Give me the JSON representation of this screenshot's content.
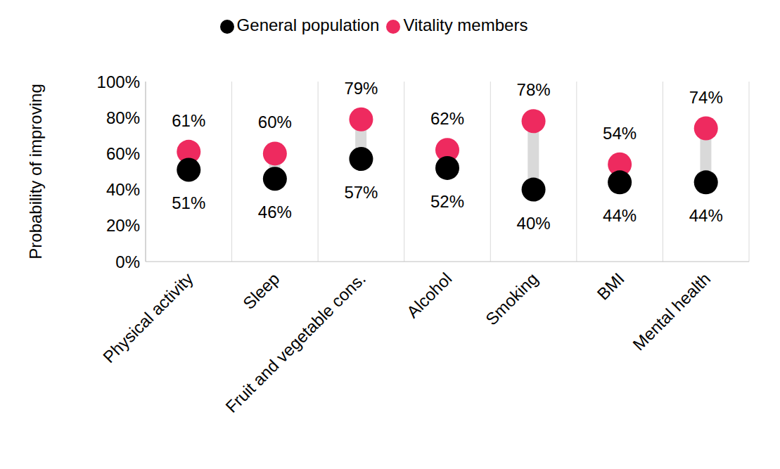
{
  "chart_data": {
    "type": "dumbbell",
    "y_label": "Probability of improving",
    "categories": [
      "Physical activity",
      "Sleep",
      "Fruit and vegetable cons.",
      "Alcohol",
      "Smoking",
      "BMI",
      "Mental health"
    ],
    "series": [
      {
        "name": "Vitality members",
        "color": "#ee2a5f",
        "marker": "circle",
        "values": [
          61,
          60,
          79,
          62,
          78,
          54,
          74
        ],
        "value_labels": [
          "61%",
          "60%",
          "79%",
          "62%",
          "78%",
          "54%",
          "74%"
        ]
      },
      {
        "name": "General population",
        "color": "#000000",
        "marker": "circle",
        "values": [
          51,
          46,
          57,
          52,
          40,
          44,
          44
        ],
        "value_labels": [
          "51%",
          "46%",
          "57%",
          "52%",
          "40%",
          "44%",
          "44%"
        ]
      }
    ],
    "ylim": [
      0,
      100
    ],
    "yticks": [
      {
        "value": 0,
        "label": "0%"
      },
      {
        "value": 20,
        "label": "20%"
      },
      {
        "value": 40,
        "label": "40%"
      },
      {
        "value": 60,
        "label": "60%"
      },
      {
        "value": 80,
        "label": "80%"
      },
      {
        "value": 100,
        "label": "100%"
      }
    ],
    "grid": true,
    "legend": "top",
    "data_labels": true
  }
}
